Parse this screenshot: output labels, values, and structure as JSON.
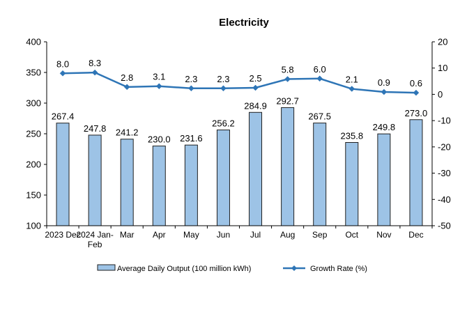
{
  "chart_data": {
    "type": "bar",
    "title": "Electricity",
    "categories": [
      "2023 Dec",
      "2024 Jan-Feb",
      "Mar",
      "Apr",
      "May",
      "Jun",
      "Jul",
      "Aug",
      "Sep",
      "Oct",
      "Nov",
      "Dec"
    ],
    "category_label_lines": [
      [
        "2023 Dec"
      ],
      [
        "2024 Jan-",
        "Feb"
      ],
      [
        "Mar"
      ],
      [
        "Apr"
      ],
      [
        "May"
      ],
      [
        "Jun"
      ],
      [
        "Jul"
      ],
      [
        "Aug"
      ],
      [
        "Sep"
      ],
      [
        "Oct"
      ],
      [
        "Nov"
      ],
      [
        "Dec"
      ]
    ],
    "series": [
      {
        "name": "Average Daily Output (100 million kWh)",
        "type": "bar",
        "axis": "left",
        "color": "#9dc3e6",
        "border": "#1f1f1f",
        "values": [
          267.4,
          247.8,
          241.2,
          230.0,
          231.6,
          256.2,
          284.9,
          292.7,
          267.5,
          235.8,
          249.8,
          273.0
        ],
        "labels": [
          "267.4",
          "247.8",
          "241.2",
          "230.0",
          "231.6",
          "256.2",
          "284.9",
          "292.7",
          "267.5",
          "235.8",
          "249.8",
          "273.0"
        ]
      },
      {
        "name": "Growth Rate (%)",
        "type": "line",
        "axis": "right",
        "color": "#2e75b6",
        "marker": "diamond",
        "values": [
          8.0,
          8.3,
          2.8,
          3.1,
          2.3,
          2.3,
          2.5,
          5.8,
          6.0,
          2.1,
          0.9,
          0.6
        ],
        "labels": [
          "8.0",
          "8.3",
          "2.8",
          "3.1",
          "2.3",
          "2.3",
          "2.5",
          "5.8",
          "6.0",
          "2.1",
          "0.9",
          "0.6"
        ]
      }
    ],
    "y_left": {
      "min": 100,
      "max": 400,
      "step": 50,
      "ticks": [
        "100",
        "150",
        "200",
        "250",
        "300",
        "350",
        "400"
      ]
    },
    "y_right": {
      "min": -50,
      "max": 20,
      "step": 10,
      "ticks": [
        "-50",
        "-40",
        "-30",
        "-20",
        "-10",
        "0",
        "10",
        "20"
      ]
    },
    "xlabel": "",
    "ylabel": "",
    "grid": false,
    "legend_position": "bottom"
  }
}
